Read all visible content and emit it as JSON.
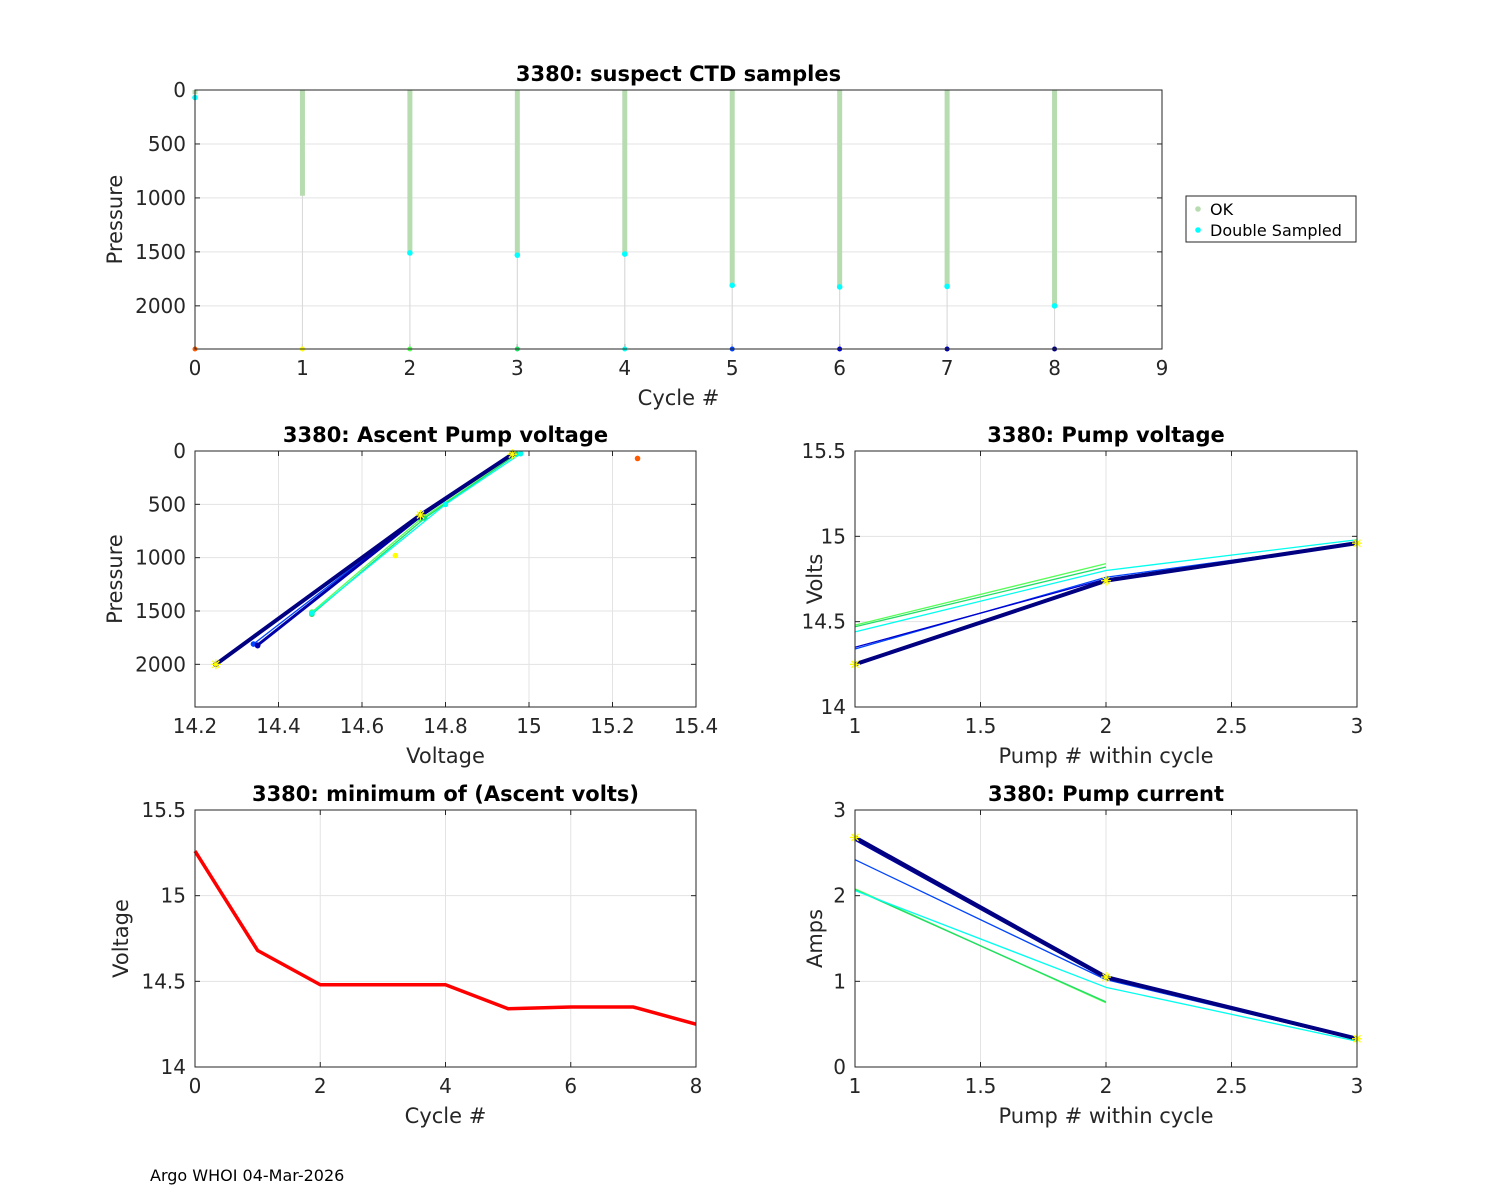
{
  "footer": "Argo WHOI 04-Mar-2026",
  "chart_data": [
    {
      "id": "ctd",
      "type": "scatter",
      "title": "3380: suspect CTD samples",
      "xlabel": "Cycle #",
      "ylabel": "Pressure",
      "xlim": [
        0,
        9
      ],
      "ylim": [
        0,
        2400
      ],
      "y_reversed": true,
      "xticks": [
        0,
        1,
        2,
        3,
        4,
        5,
        6,
        7,
        8,
        9
      ],
      "yticks": [
        0,
        500,
        1000,
        1500,
        2000
      ],
      "grid": true,
      "legend": {
        "placement": "right",
        "entries": [
          {
            "label": "OK",
            "color": "#b7dcb0"
          },
          {
            "label": "Double Sampled",
            "color": "#00ffff"
          }
        ]
      },
      "ok_profiles": [
        {
          "cycle": 0,
          "max_pressure": 40
        },
        {
          "cycle": 1,
          "max_pressure": 980
        },
        {
          "cycle": 2,
          "max_pressure": 1500
        },
        {
          "cycle": 3,
          "max_pressure": 1520
        },
        {
          "cycle": 4,
          "max_pressure": 1510
        },
        {
          "cycle": 5,
          "max_pressure": 1800
        },
        {
          "cycle": 6,
          "max_pressure": 1815
        },
        {
          "cycle": 7,
          "max_pressure": 1810
        },
        {
          "cycle": 8,
          "max_pressure": 1990
        }
      ],
      "double_sampled": [
        {
          "cycle": 0,
          "pressure": 70
        },
        {
          "cycle": 2,
          "pressure": 1510
        },
        {
          "cycle": 3,
          "pressure": 1530
        },
        {
          "cycle": 4,
          "pressure": 1520
        },
        {
          "cycle": 5,
          "pressure": 1810
        },
        {
          "cycle": 6,
          "pressure": 1825
        },
        {
          "cycle": 7,
          "pressure": 1820
        },
        {
          "cycle": 8,
          "pressure": 2000
        }
      ],
      "cycle_markers": [
        {
          "cycle": 0,
          "pressure": 2400,
          "color": "#ff5a00"
        },
        {
          "cycle": 1,
          "pressure": 2400,
          "color": "#ffff00"
        },
        {
          "cycle": 2,
          "pressure": 2400,
          "color": "#55ff55"
        },
        {
          "cycle": 3,
          "pressure": 2400,
          "color": "#22dd66"
        },
        {
          "cycle": 4,
          "pressure": 2400,
          "color": "#00ffee"
        },
        {
          "cycle": 5,
          "pressure": 2400,
          "color": "#0044ff"
        },
        {
          "cycle": 6,
          "pressure": 2400,
          "color": "#0000cc"
        },
        {
          "cycle": 7,
          "pressure": 2400,
          "color": "#0000aa"
        },
        {
          "cycle": 8,
          "pressure": 2400,
          "color": "#000080"
        }
      ]
    },
    {
      "id": "ascent",
      "type": "line",
      "title": "3380: Ascent Pump voltage",
      "xlabel": "Voltage",
      "ylabel": "Pressure",
      "xlim": [
        14.2,
        15.4
      ],
      "ylim": [
        0,
        2400
      ],
      "y_reversed": true,
      "xticks": [
        14.2,
        14.4,
        14.6,
        14.8,
        15,
        15.2,
        15.4
      ],
      "yticks": [
        0,
        500,
        1000,
        1500,
        2000
      ],
      "grid": true,
      "series": [
        {
          "name": "cycle 0",
          "color": "#ff5a00",
          "points": [
            [
              15.26,
              70
            ]
          ]
        },
        {
          "name": "cycle 1",
          "color": "#ffff00",
          "points": [
            [
              14.68,
              980
            ]
          ]
        },
        {
          "name": "cycle 2",
          "color": "#55ff55",
          "points": [
            [
              14.48,
              1510
            ],
            [
              14.74,
              640
            ],
            [
              14.97,
              30
            ]
          ]
        },
        {
          "name": "cycle 3",
          "color": "#22dd66",
          "points": [
            [
              14.48,
              1530
            ],
            [
              14.75,
              630
            ],
            [
              14.97,
              30
            ]
          ]
        },
        {
          "name": "cycle 4",
          "color": "#00ffee",
          "points": [
            [
              14.48,
              1520
            ],
            [
              14.8,
              500
            ],
            [
              14.98,
              25
            ]
          ]
        },
        {
          "name": "cycle 5",
          "color": "#0044ff",
          "points": [
            [
              14.34,
              1810
            ],
            [
              14.74,
              600
            ],
            [
              14.96,
              25
            ]
          ]
        },
        {
          "name": "cycle 6",
          "color": "#0000cc",
          "points": [
            [
              14.35,
              1825
            ],
            [
              14.74,
              620
            ],
            [
              14.96,
              30
            ]
          ]
        },
        {
          "name": "cycle 7",
          "color": "#0000aa",
          "points": [
            [
              14.35,
              1820
            ],
            [
              14.74,
              610
            ],
            [
              14.96,
              30
            ]
          ]
        },
        {
          "name": "cycle 8",
          "color": "#000080",
          "points": [
            [
              14.25,
              2000
            ],
            [
              14.74,
              600
            ],
            [
              14.96,
              30
            ]
          ]
        }
      ],
      "highlight": {
        "color": "#ffff00",
        "points": [
          [
            14.25,
            2000
          ],
          [
            14.74,
            600
          ],
          [
            14.96,
            30
          ]
        ]
      }
    },
    {
      "id": "pumpv",
      "type": "line",
      "title": "3380: Pump voltage",
      "xlabel": "Pump # within cycle",
      "ylabel": "Volts",
      "xlim": [
        1,
        3
      ],
      "ylim": [
        14,
        15.5
      ],
      "xticks": [
        1,
        1.5,
        2,
        2.5,
        3
      ],
      "yticks": [
        14,
        14.5,
        15,
        15.5
      ],
      "grid": true,
      "series": [
        {
          "name": "cycle 2",
          "color": "#55ff55",
          "points": [
            [
              1,
              14.48
            ],
            [
              2,
              14.84
            ]
          ]
        },
        {
          "name": "cycle 3",
          "color": "#22dd66",
          "points": [
            [
              1,
              14.47
            ],
            [
              2,
              14.82
            ]
          ]
        },
        {
          "name": "cycle 4",
          "color": "#00ffee",
          "points": [
            [
              1,
              14.44
            ],
            [
              2,
              14.8
            ],
            [
              3,
              14.98
            ]
          ]
        },
        {
          "name": "cycle 5",
          "color": "#0044ff",
          "points": [
            [
              1,
              14.34
            ],
            [
              2,
              14.76
            ],
            [
              3,
              14.96
            ]
          ]
        },
        {
          "name": "cycle 6",
          "color": "#0000cc",
          "points": [
            [
              1,
              14.35
            ],
            [
              2,
              14.75
            ],
            [
              3,
              14.96
            ]
          ]
        },
        {
          "name": "cycle 7",
          "color": "#0000aa",
          "points": [
            [
              1,
              14.25
            ],
            [
              2,
              14.74
            ],
            [
              3,
              14.96
            ]
          ]
        },
        {
          "name": "cycle 8",
          "color": "#000080",
          "points": [
            [
              1,
              14.25
            ],
            [
              2,
              14.74
            ],
            [
              3,
              14.96
            ]
          ]
        }
      ],
      "highlight": {
        "color": "#ffff00",
        "points": [
          [
            1,
            14.25
          ],
          [
            2,
            14.74
          ],
          [
            3,
            14.96
          ]
        ]
      }
    },
    {
      "id": "minv",
      "type": "line",
      "title": "3380: minimum of (Ascent volts)",
      "xlabel": "Cycle #",
      "ylabel": "Voltage",
      "xlim": [
        0,
        8
      ],
      "ylim": [
        14,
        15.5
      ],
      "xticks": [
        0,
        2,
        4,
        6,
        8
      ],
      "yticks": [
        14,
        14.5,
        15,
        15.5
      ],
      "grid": true,
      "series": [
        {
          "name": "minimum ascent volts",
          "color": "#ff0000",
          "x": [
            0,
            1,
            2,
            3,
            4,
            5,
            6,
            7,
            8
          ],
          "y": [
            15.26,
            14.68,
            14.48,
            14.48,
            14.48,
            14.34,
            14.35,
            14.35,
            14.25
          ]
        }
      ]
    },
    {
      "id": "pumpc",
      "type": "line",
      "title": "3380: Pump current",
      "xlabel": "Pump # within cycle",
      "ylabel": "Amps",
      "xlim": [
        1,
        3
      ],
      "ylim": [
        0,
        3
      ],
      "xticks": [
        1,
        1.5,
        2,
        2.5,
        3
      ],
      "yticks": [
        0,
        1,
        2,
        3
      ],
      "grid": true,
      "series": [
        {
          "name": "cycle 2",
          "color": "#55ff55",
          "points": [
            [
              1,
              2.08
            ],
            [
              2,
              0.75
            ]
          ]
        },
        {
          "name": "cycle 3",
          "color": "#22dd66",
          "points": [
            [
              1,
              2.07
            ],
            [
              2,
              0.76
            ]
          ]
        },
        {
          "name": "cycle 4",
          "color": "#00ffee",
          "points": [
            [
              1,
              2.06
            ],
            [
              2,
              0.93
            ],
            [
              3,
              0.3
            ]
          ]
        },
        {
          "name": "cycle 5",
          "color": "#0044ff",
          "points": [
            [
              1,
              2.42
            ],
            [
              2,
              1.02
            ],
            [
              3,
              0.32
            ]
          ]
        },
        {
          "name": "cycle 6",
          "color": "#0000cc",
          "points": [
            [
              1,
              2.68
            ],
            [
              2,
              1.05
            ],
            [
              3,
              0.33
            ]
          ]
        },
        {
          "name": "cycle 7",
          "color": "#0000aa",
          "points": [
            [
              1,
              2.66
            ],
            [
              2,
              1.04
            ],
            [
              3,
              0.33
            ]
          ]
        },
        {
          "name": "cycle 8",
          "color": "#000080",
          "points": [
            [
              1,
              2.68
            ],
            [
              2,
              1.05
            ],
            [
              3,
              0.33
            ]
          ]
        }
      ],
      "highlight": {
        "color": "#ffff00",
        "points": [
          [
            1,
            2.68
          ],
          [
            2,
            1.05
          ],
          [
            3,
            0.33
          ]
        ]
      }
    }
  ]
}
